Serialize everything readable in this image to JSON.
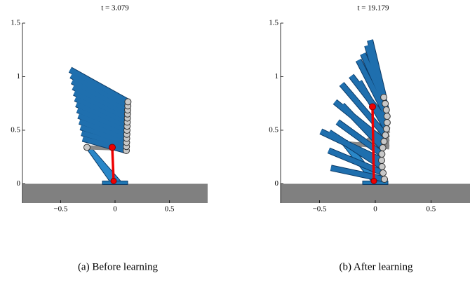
{
  "chart_data": [
    {
      "type": "robot-poses",
      "title": "t = 3.079",
      "caption": "(a) Before learning",
      "xlim": [
        -0.85,
        0.85
      ],
      "ylim": [
        -0.18,
        1.5
      ],
      "xticks": [
        {
          "value": -0.5,
          "label": "−0.5"
        },
        0,
        0.5
      ],
      "yticks": [
        0,
        0.5,
        1,
        1.5
      ]
    },
    {
      "type": "robot-poses",
      "title": "t = 19.179",
      "caption": "(b) After learning",
      "xlim": [
        -0.85,
        0.85
      ],
      "ylim": [
        -0.18,
        1.5
      ],
      "xticks": [
        {
          "value": -0.5,
          "label": "−0.5"
        },
        0,
        0.5
      ],
      "yticks": [
        0,
        0.5,
        1,
        1.5
      ]
    }
  ]
}
